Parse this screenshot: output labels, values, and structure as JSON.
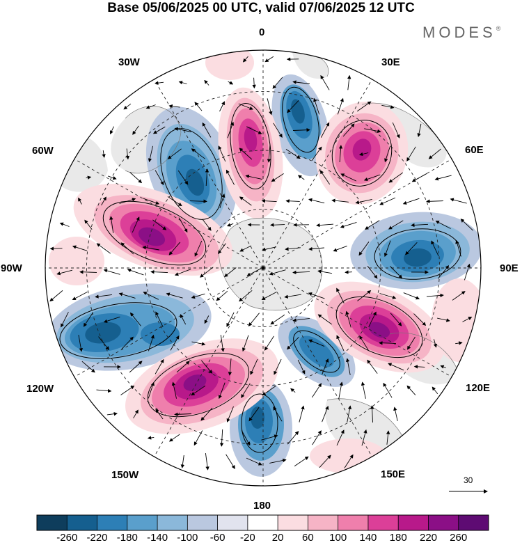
{
  "title": "Base 05/06/2025 00 UTC, valid 07/06/2025 12 UTC",
  "brand": {
    "name": "MODES",
    "mark": "®"
  },
  "longitude_labels": {
    "north": "0",
    "ne": "30E",
    "ene": "60E",
    "east": "90E",
    "ese": "120E",
    "se": "150E",
    "south": "180",
    "sw": "150W",
    "wsw": "120W",
    "west": "90W",
    "wnw": "60W",
    "nw": "30W"
  },
  "reference_vector": {
    "value": "30"
  },
  "colorbar": {
    "ticks": [
      "-260",
      "-220",
      "-180",
      "-140",
      "-100",
      "-60",
      "-20",
      "20",
      "60",
      "100",
      "140",
      "180",
      "220",
      "260"
    ],
    "colors": [
      "#0e3d5c",
      "#155f8f",
      "#2d7fb6",
      "#5a9fcc",
      "#8bb8da",
      "#bac8e0",
      "#e1e3ee",
      "#ffffff",
      "#fbdde1",
      "#f6b4c6",
      "#ef7fac",
      "#dc3f98",
      "#b8198a",
      "#8b0f86",
      "#5e0b73"
    ]
  },
  "colors": {
    "land": "#e9e9e9",
    "ocean_bg": "#ffffff",
    "boundary": "#000000"
  }
}
